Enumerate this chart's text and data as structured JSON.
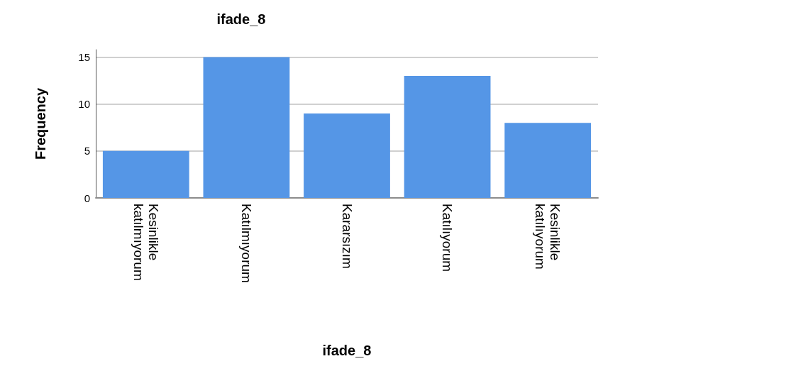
{
  "chart_data": {
    "type": "bar",
    "title": "ifade_8",
    "xlabel": "ifade_8",
    "ylabel": "Frequency",
    "categories": [
      "Kesinlikle katılmıyorum",
      "Katılmıyorum",
      "Kararsızım",
      "Katılıyorum",
      "Kesinlikle katılıyorum"
    ],
    "values": [
      5,
      15,
      9,
      13,
      8
    ],
    "color": "#5596e6",
    "ylim": [
      0,
      15.8
    ],
    "yticks": [
      0,
      5,
      10,
      15
    ],
    "grid": "y"
  }
}
